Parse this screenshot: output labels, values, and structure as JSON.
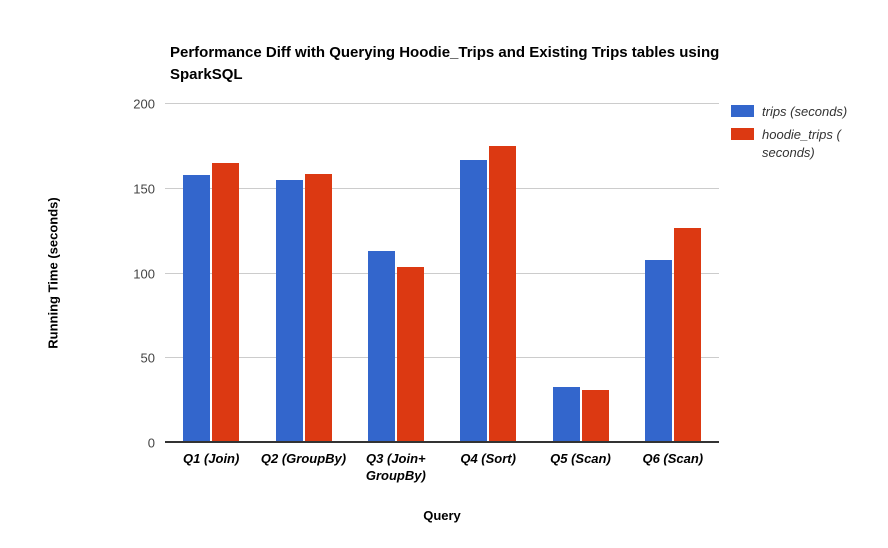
{
  "chart_data": {
    "type": "bar",
    "title": "Performance Diff with Querying Hoodie_Trips and Existing Trips tables using SparkSQL",
    "xlabel": "Query",
    "ylabel": "Running Time (seconds)",
    "categories": [
      "Q1 (Join)",
      "Q2 (GroupBy)",
      "Q3 (Join+GroupBy)",
      "Q4 (Sort)",
      "Q5 (Scan)",
      "Q6 (Scan)"
    ],
    "tick_labels": [
      "Q1 (Join)",
      "Q2 (GroupBy)",
      "Q3 (Join+\nGroupBy)",
      "Q4 (Sort)",
      "Q5 (Scan)",
      "Q6 (Scan)"
    ],
    "series": [
      {
        "name": "trips (seconds)",
        "legend_label": "trips (seconds)",
        "color": "#3366CC",
        "values": [
          158,
          155,
          113,
          167,
          33,
          108
        ]
      },
      {
        "name": "hoodie_trips (seconds)",
        "legend_label": "hoodie_trips (\nseconds)",
        "color": "#DC3912",
        "values": [
          165,
          159,
          104,
          175,
          31,
          127
        ]
      }
    ],
    "ylim": [
      0,
      200
    ],
    "yticks": [
      0,
      50,
      100,
      150,
      200
    ],
    "grid": true,
    "legend_position": "right",
    "colors": {
      "gridline": "#cccccc",
      "axis_line": "#333333",
      "tick_text": "#444444",
      "title_text": "#000000",
      "background": "#ffffff"
    }
  }
}
